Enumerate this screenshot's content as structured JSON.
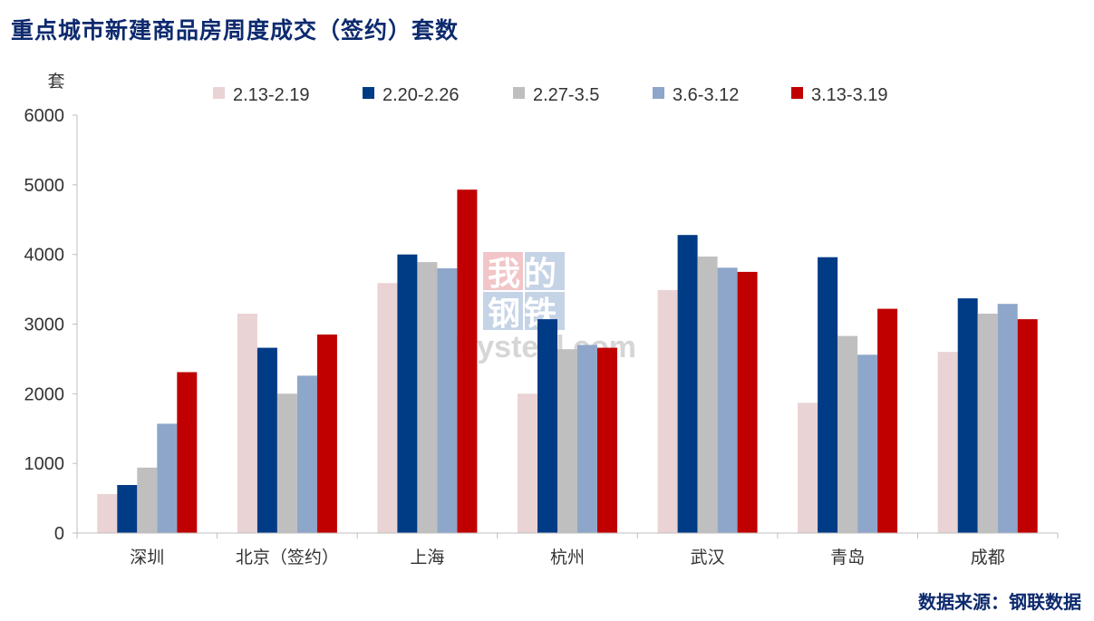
{
  "title": "重点城市新建商品房周度成交（签约）套数",
  "source": "数据来源：钢联数据",
  "watermark": {
    "line1": "我的",
    "line2": "钢铁",
    "brand": "Mysteel.com"
  },
  "chart_data": {
    "type": "bar",
    "unit_label": "套",
    "ylim": [
      0,
      6000
    ],
    "yticks": [
      0,
      1000,
      2000,
      3000,
      4000,
      5000,
      6000
    ],
    "grid": false,
    "legend_position": "top",
    "categories": [
      "深圳",
      "北京（签约）",
      "上海",
      "杭州",
      "武汉",
      "青岛",
      "成都"
    ],
    "series": [
      {
        "name": "2.13-2.19",
        "color": "#ead3d4",
        "values": [
          560,
          3150,
          3590,
          2000,
          3490,
          1870,
          2600
        ]
      },
      {
        "name": "2.20-2.26",
        "color": "#003b86",
        "values": [
          690,
          2660,
          4000,
          3070,
          4280,
          3960,
          3370
        ]
      },
      {
        "name": "2.27-3.5",
        "color": "#bfbfbf",
        "values": [
          940,
          2000,
          3890,
          2640,
          3970,
          2830,
          3150
        ]
      },
      {
        "name": "3.6-3.12",
        "color": "#8ea6c9",
        "values": [
          1570,
          2260,
          3800,
          2700,
          3810,
          2560,
          3290
        ]
      },
      {
        "name": "3.13-3.19",
        "color": "#c00000",
        "values": [
          2310,
          2850,
          4930,
          2660,
          3750,
          3220,
          3070
        ]
      }
    ]
  }
}
